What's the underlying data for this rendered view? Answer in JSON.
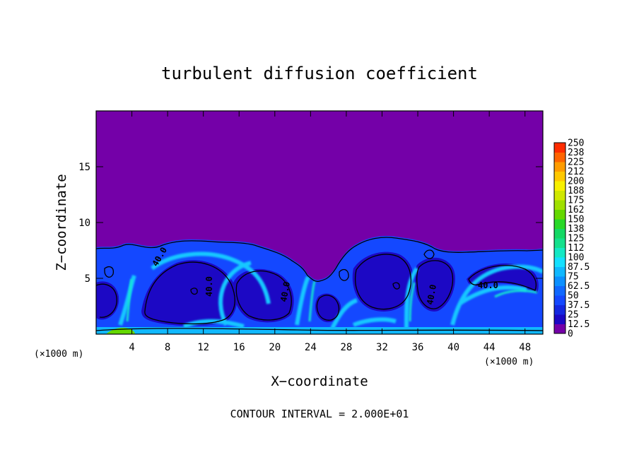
{
  "chart_data": {
    "type": "heatmap",
    "title": "turbulent diffusion coefficient",
    "xlabel": "X−coordinate",
    "ylabel": "Z−coordinate",
    "x_unit_left": "(×1000 m)",
    "x_unit_right": "(×1000 m)",
    "xlim": [
      0,
      50
    ],
    "ylim": [
      0,
      20
    ],
    "x_ticks": [
      4,
      8,
      12,
      16,
      20,
      24,
      28,
      32,
      36,
      40,
      44,
      48
    ],
    "y_ticks": [
      5,
      10,
      15
    ],
    "colorbar": {
      "levels": [
        "0",
        "12.5",
        "25",
        "37.5",
        "50",
        "62.5",
        "75",
        "87.5",
        "100",
        "112",
        "125",
        "138",
        "150",
        "162",
        "175",
        "188",
        "200",
        "212",
        "225",
        "238",
        "250"
      ],
      "colors": [
        "#7400a8",
        "#1c08c4",
        "#1428e0",
        "#1448ff",
        "#1068ff",
        "#0c90ff",
        "#10b8ff",
        "#14e0ff",
        "#14e8c4",
        "#14e08c",
        "#14d864",
        "#28d828",
        "#64d800",
        "#a0e000",
        "#d0e800",
        "#f8f000",
        "#ffc800",
        "#ff9c00",
        "#ff6400",
        "#ff2c00",
        "#ff7878"
      ]
    },
    "contour_labels": [
      "40.0",
      "40.0",
      "40.0",
      "40.0",
      "40.0"
    ],
    "background_value_upper": 0,
    "turbulent_layer_top_z": 8.5
  },
  "footer": {
    "contour_interval": "CONTOUR INTERVAL = 2.000E+01"
  }
}
